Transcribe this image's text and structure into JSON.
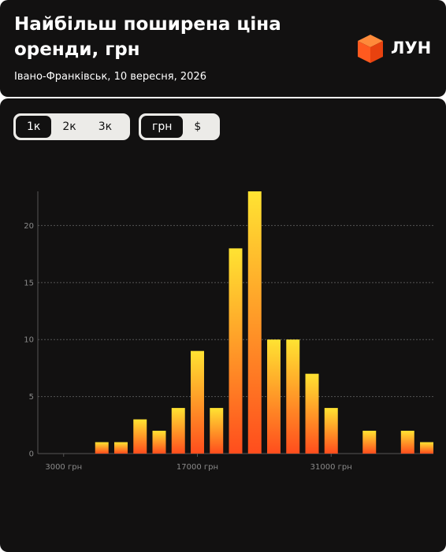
{
  "header": {
    "title_line1": "Найбільш поширена ціна",
    "title_line2": "оренди, грн",
    "subtitle": "Івано-Франківськ, 10 вересня, 2026",
    "logo": "ЛУН"
  },
  "controls": {
    "rooms": [
      "1к",
      "2к",
      "3к"
    ],
    "currency": [
      "грн",
      "$"
    ]
  },
  "chart_data": {
    "type": "histogram",
    "bins": [
      6000,
      8000,
      10000,
      12000,
      14000,
      16000,
      18000,
      20000,
      22000,
      24000,
      26000,
      28000,
      30000,
      32000,
      34000,
      36000,
      38000,
      40000,
      42000
    ],
    "values": [
      1,
      1,
      3,
      2,
      4,
      9,
      4,
      18,
      23,
      10,
      10,
      7,
      4,
      0,
      2,
      0,
      2,
      1
    ],
    "color_top": "#ffe332",
    "color_bottom": "#ff4d1d",
    "xlim": [
      300,
      41700
    ],
    "xticks": [
      {
        "value": 3000,
        "label": "3000 грн"
      },
      {
        "value": 17000,
        "label": "17000 грн"
      },
      {
        "value": 31000,
        "label": "31000 грн"
      }
    ],
    "ylim": [
      0,
      23
    ],
    "yticks": [
      0,
      5,
      10,
      15,
      20
    ],
    "grid": true
  }
}
